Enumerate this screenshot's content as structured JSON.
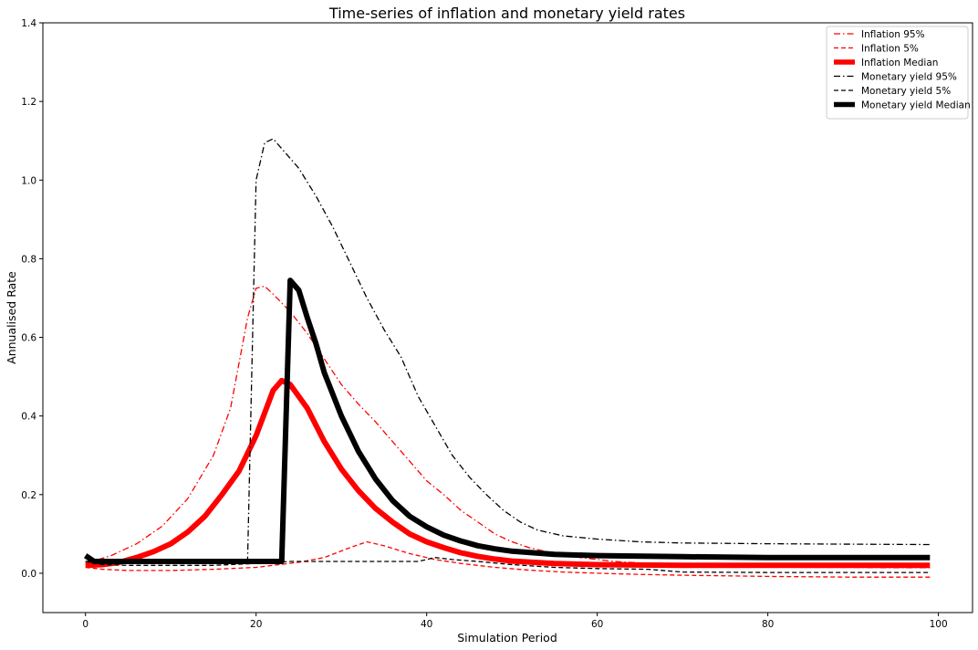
{
  "chart_data": {
    "type": "line",
    "title": "Time-series of inflation and monetary yield rates",
    "xlabel": "Simulation Period",
    "ylabel": "Annualised Rate",
    "xlim": [
      -5,
      104
    ],
    "ylim": [
      -0.1,
      1.4
    ],
    "xticks": [
      0,
      20,
      40,
      60,
      80,
      100
    ],
    "xtick_labels": [
      "0",
      "20",
      "40",
      "60",
      "80",
      "100"
    ],
    "yticks": [
      0.0,
      0.2,
      0.4,
      0.6,
      0.8,
      1.0,
      1.2,
      1.4
    ],
    "ytick_labels": [
      "0.0",
      "0.2",
      "0.4",
      "0.6",
      "0.8",
      "1.0",
      "1.2",
      "1.4"
    ],
    "grid": false,
    "legend_position": "top-right",
    "series": [
      {
        "name": "Inflation 95%",
        "color": "#ff0000",
        "style": "dashdot",
        "width": 1.3,
        "points": [
          [
            0,
            0.025
          ],
          [
            3,
            0.045
          ],
          [
            6,
            0.075
          ],
          [
            9,
            0.12
          ],
          [
            12,
            0.19
          ],
          [
            15,
            0.3
          ],
          [
            17,
            0.42
          ],
          [
            19,
            0.65
          ],
          [
            20,
            0.725
          ],
          [
            21,
            0.73
          ],
          [
            22,
            0.71
          ],
          [
            24,
            0.665
          ],
          [
            26,
            0.61
          ],
          [
            28,
            0.545
          ],
          [
            30,
            0.48
          ],
          [
            32,
            0.43
          ],
          [
            34,
            0.385
          ],
          [
            36,
            0.335
          ],
          [
            38,
            0.285
          ],
          [
            40,
            0.235
          ],
          [
            42,
            0.2
          ],
          [
            44,
            0.16
          ],
          [
            46,
            0.13
          ],
          [
            48,
            0.1
          ],
          [
            50,
            0.08
          ],
          [
            52,
            0.065
          ],
          [
            55,
            0.05
          ],
          [
            58,
            0.04
          ],
          [
            62,
            0.03
          ],
          [
            66,
            0.025
          ],
          [
            70,
            0.02
          ],
          [
            75,
            0.018
          ],
          [
            80,
            0.017
          ],
          [
            85,
            0.015
          ],
          [
            90,
            0.015
          ],
          [
            95,
            0.014
          ],
          [
            99,
            0.014
          ]
        ]
      },
      {
        "name": "Inflation 5%",
        "color": "#ff0000",
        "style": "dashed",
        "width": 1.3,
        "points": [
          [
            0,
            0.015
          ],
          [
            2,
            0.01
          ],
          [
            5,
            0.007
          ],
          [
            10,
            0.007
          ],
          [
            15,
            0.01
          ],
          [
            20,
            0.015
          ],
          [
            25,
            0.028
          ],
          [
            28,
            0.04
          ],
          [
            31,
            0.065
          ],
          [
            33,
            0.08
          ],
          [
            35,
            0.07
          ],
          [
            38,
            0.05
          ],
          [
            41,
            0.035
          ],
          [
            44,
            0.025
          ],
          [
            48,
            0.015
          ],
          [
            52,
            0.008
          ],
          [
            56,
            0.003
          ],
          [
            60,
            0.0
          ],
          [
            65,
            -0.003
          ],
          [
            70,
            -0.005
          ],
          [
            80,
            -0.008
          ],
          [
            90,
            -0.01
          ],
          [
            99,
            -0.01
          ]
        ]
      },
      {
        "name": "Inflation Median",
        "color": "#ff0000",
        "style": "solid",
        "width": 6,
        "points": [
          [
            0,
            0.02
          ],
          [
            2,
            0.022
          ],
          [
            4,
            0.028
          ],
          [
            6,
            0.04
          ],
          [
            8,
            0.055
          ],
          [
            10,
            0.075
          ],
          [
            12,
            0.105
          ],
          [
            14,
            0.145
          ],
          [
            16,
            0.2
          ],
          [
            18,
            0.26
          ],
          [
            20,
            0.35
          ],
          [
            22,
            0.465
          ],
          [
            23,
            0.49
          ],
          [
            24,
            0.48
          ],
          [
            26,
            0.42
          ],
          [
            28,
            0.335
          ],
          [
            30,
            0.265
          ],
          [
            32,
            0.21
          ],
          [
            34,
            0.165
          ],
          [
            36,
            0.13
          ],
          [
            38,
            0.1
          ],
          [
            40,
            0.08
          ],
          [
            42,
            0.065
          ],
          [
            44,
            0.052
          ],
          [
            46,
            0.043
          ],
          [
            48,
            0.036
          ],
          [
            50,
            0.031
          ],
          [
            55,
            0.025
          ],
          [
            60,
            0.022
          ],
          [
            70,
            0.02
          ],
          [
            80,
            0.02
          ],
          [
            90,
            0.02
          ],
          [
            99,
            0.02
          ]
        ]
      },
      {
        "name": "Monetary yield 95%",
        "color": "#000000",
        "style": "dashdot",
        "width": 1.3,
        "points": [
          [
            0,
            0.03
          ],
          [
            5,
            0.03
          ],
          [
            10,
            0.03
          ],
          [
            15,
            0.03
          ],
          [
            19,
            0.035
          ],
          [
            20,
            1.0
          ],
          [
            21,
            1.095
          ],
          [
            22,
            1.105
          ],
          [
            23,
            1.08
          ],
          [
            25,
            1.03
          ],
          [
            27,
            0.96
          ],
          [
            29,
            0.88
          ],
          [
            31,
            0.79
          ],
          [
            33,
            0.7
          ],
          [
            35,
            0.62
          ],
          [
            37,
            0.55
          ],
          [
            39,
            0.45
          ],
          [
            41,
            0.375
          ],
          [
            43,
            0.3
          ],
          [
            45,
            0.245
          ],
          [
            47,
            0.2
          ],
          [
            49,
            0.16
          ],
          [
            51,
            0.13
          ],
          [
            53,
            0.11
          ],
          [
            56,
            0.095
          ],
          [
            60,
            0.087
          ],
          [
            65,
            0.08
          ],
          [
            70,
            0.077
          ],
          [
            80,
            0.075
          ],
          [
            90,
            0.074
          ],
          [
            99,
            0.073
          ]
        ]
      },
      {
        "name": "Monetary yield 5%",
        "color": "#000000",
        "style": "dashed",
        "width": 1.3,
        "points": [
          [
            0,
            0.03
          ],
          [
            2,
            0.022
          ],
          [
            5,
            0.02
          ],
          [
            10,
            0.02
          ],
          [
            15,
            0.02
          ],
          [
            20,
            0.025
          ],
          [
            24,
            0.03
          ],
          [
            30,
            0.03
          ],
          [
            35,
            0.03
          ],
          [
            39,
            0.03
          ],
          [
            41,
            0.04
          ],
          [
            43,
            0.035
          ],
          [
            46,
            0.03
          ],
          [
            50,
            0.022
          ],
          [
            55,
            0.015
          ],
          [
            60,
            0.012
          ],
          [
            66,
            0.01
          ],
          [
            70,
            0.003
          ],
          [
            80,
            0.002
          ],
          [
            90,
            0.002
          ],
          [
            99,
            0.002
          ]
        ]
      },
      {
        "name": "Monetary yield Median",
        "color": "#000000",
        "style": "solid",
        "width": 6,
        "points": [
          [
            0,
            0.045
          ],
          [
            1,
            0.03
          ],
          [
            5,
            0.03
          ],
          [
            10,
            0.03
          ],
          [
            15,
            0.03
          ],
          [
            20,
            0.03
          ],
          [
            23,
            0.03
          ],
          [
            24,
            0.745
          ],
          [
            25,
            0.72
          ],
          [
            26,
            0.65
          ],
          [
            27,
            0.585
          ],
          [
            28,
            0.51
          ],
          [
            30,
            0.4
          ],
          [
            32,
            0.31
          ],
          [
            34,
            0.24
          ],
          [
            36,
            0.185
          ],
          [
            38,
            0.145
          ],
          [
            40,
            0.118
          ],
          [
            42,
            0.097
          ],
          [
            44,
            0.082
          ],
          [
            46,
            0.07
          ],
          [
            48,
            0.062
          ],
          [
            50,
            0.056
          ],
          [
            55,
            0.048
          ],
          [
            60,
            0.045
          ],
          [
            70,
            0.042
          ],
          [
            80,
            0.04
          ],
          [
            90,
            0.04
          ],
          [
            99,
            0.04
          ]
        ]
      }
    ]
  }
}
